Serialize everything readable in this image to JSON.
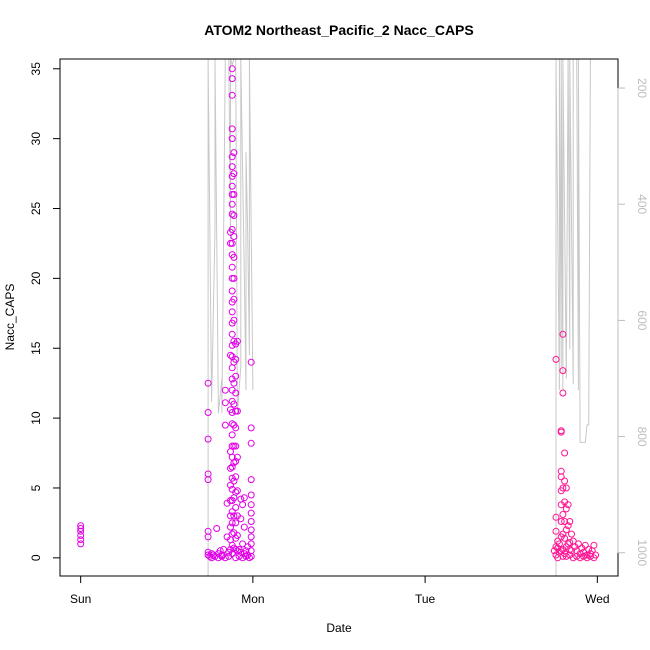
{
  "chart_data": {
    "type": "scatter",
    "title": "ATOM2 Northeast_Pacific_2 Nacc_CAPS",
    "xlabel": "Date",
    "ylabel": "Nacc_CAPS",
    "x_ticks": [
      "Sun",
      "Mon",
      "Tue",
      "Wed"
    ],
    "x_tick_days": [
      0,
      1,
      2,
      3
    ],
    "xlim_days": [
      -0.12,
      3.12
    ],
    "ylim": [
      -1.3,
      35.7
    ],
    "y_ticks": [
      0,
      5,
      10,
      15,
      20,
      25,
      30,
      35
    ],
    "y2_ticks": [
      200,
      400,
      600,
      800,
      1000
    ],
    "y2lim": [
      1040,
      150
    ],
    "grid": false,
    "legend": "none",
    "colors": {
      "flight1": "#e100e6",
      "flight2": "#ff1493",
      "altitude": "#c8c8c8",
      "axis": "#000000",
      "y2_labels": "#bdbdbd"
    },
    "series": [
      {
        "color": "flight1",
        "points": [
          [
            0.0,
            1.0
          ],
          [
            0.0,
            1.3
          ],
          [
            0.0,
            1.6
          ],
          [
            0.0,
            1.9
          ],
          [
            0.0,
            2.1
          ],
          [
            0.0,
            2.3
          ],
          [
            0.74,
            12.5
          ],
          [
            0.74,
            10.4
          ],
          [
            0.74,
            8.5
          ],
          [
            0.74,
            6.0
          ],
          [
            0.74,
            5.6
          ],
          [
            0.74,
            1.9
          ],
          [
            0.74,
            1.5
          ],
          [
            0.74,
            0.4
          ],
          [
            0.74,
            0.2
          ],
          [
            0.75,
            0.1
          ],
          [
            0.76,
            0.3
          ],
          [
            0.77,
            0.2
          ],
          [
            0.79,
            2.1
          ],
          [
            0.8,
            0.3
          ],
          [
            0.81,
            0.5
          ],
          [
            0.82,
            0.2
          ],
          [
            0.83,
            0.6
          ],
          [
            0.84,
            11.1
          ],
          [
            0.84,
            12.0
          ],
          [
            0.84,
            9.5
          ],
          [
            0.85,
            1.5
          ],
          [
            0.85,
            3.9
          ],
          [
            0.86,
            0.4
          ],
          [
            0.87,
            23.3
          ],
          [
            0.87,
            22.5
          ],
          [
            0.87,
            14.5
          ],
          [
            0.87,
            10.6
          ],
          [
            0.87,
            7.6
          ],
          [
            0.87,
            6.4
          ],
          [
            0.87,
            5.2
          ],
          [
            0.87,
            4.1
          ],
          [
            0.87,
            3.0
          ],
          [
            0.87,
            2.2
          ],
          [
            0.87,
            1.3
          ],
          [
            0.87,
            0.6
          ],
          [
            0.88,
            35.0
          ],
          [
            0.88,
            34.3
          ],
          [
            0.88,
            33.1
          ],
          [
            0.88,
            30.7
          ],
          [
            0.88,
            30.0
          ],
          [
            0.88,
            28.7
          ],
          [
            0.88,
            28.0
          ],
          [
            0.88,
            27.3
          ],
          [
            0.88,
            26.6
          ],
          [
            0.88,
            26.0
          ],
          [
            0.88,
            25.3
          ],
          [
            0.88,
            24.6
          ],
          [
            0.88,
            23.5
          ],
          [
            0.88,
            22.5
          ],
          [
            0.88,
            21.7
          ],
          [
            0.88,
            20.8
          ],
          [
            0.88,
            20.0
          ],
          [
            0.88,
            19.1
          ],
          [
            0.88,
            18.3
          ],
          [
            0.88,
            17.6
          ],
          [
            0.88,
            16.8
          ],
          [
            0.88,
            16.0
          ],
          [
            0.88,
            15.2
          ],
          [
            0.88,
            14.4
          ],
          [
            0.88,
            13.6
          ],
          [
            0.88,
            12.8
          ],
          [
            0.88,
            12.0
          ],
          [
            0.88,
            11.2
          ],
          [
            0.88,
            10.4
          ],
          [
            0.88,
            9.6
          ],
          [
            0.88,
            8.8
          ],
          [
            0.88,
            8.0
          ],
          [
            0.88,
            7.2
          ],
          [
            0.88,
            6.5
          ],
          [
            0.88,
            5.7
          ],
          [
            0.88,
            4.9
          ],
          [
            0.88,
            4.1
          ],
          [
            0.88,
            3.3
          ],
          [
            0.88,
            2.5
          ],
          [
            0.88,
            1.7
          ],
          [
            0.88,
            0.9
          ],
          [
            0.88,
            0.3
          ],
          [
            0.89,
            29.0
          ],
          [
            0.89,
            27.5
          ],
          [
            0.89,
            26.0
          ],
          [
            0.89,
            24.5
          ],
          [
            0.89,
            23.0
          ],
          [
            0.89,
            21.5
          ],
          [
            0.89,
            20.0
          ],
          [
            0.89,
            18.5
          ],
          [
            0.89,
            17.0
          ],
          [
            0.89,
            15.5
          ],
          [
            0.89,
            14.0
          ],
          [
            0.89,
            12.5
          ],
          [
            0.89,
            11.0
          ],
          [
            0.89,
            9.5
          ],
          [
            0.89,
            8.0
          ],
          [
            0.89,
            6.8
          ],
          [
            0.89,
            5.5
          ],
          [
            0.89,
            4.3
          ],
          [
            0.89,
            3.0
          ],
          [
            0.89,
            1.8
          ],
          [
            0.89,
            0.7
          ],
          [
            0.9,
            15.3
          ],
          [
            0.9,
            14.2
          ],
          [
            0.9,
            13.0
          ],
          [
            0.9,
            11.8
          ],
          [
            0.9,
            10.5
          ],
          [
            0.9,
            9.3
          ],
          [
            0.9,
            8.0
          ],
          [
            0.9,
            6.9
          ],
          [
            0.9,
            5.8
          ],
          [
            0.9,
            4.7
          ],
          [
            0.9,
            3.6
          ],
          [
            0.9,
            2.5
          ],
          [
            0.9,
            1.4
          ],
          [
            0.9,
            0.6
          ],
          [
            0.91,
            15.5
          ],
          [
            0.91,
            10.5
          ],
          [
            0.91,
            7.2
          ],
          [
            0.91,
            4.8
          ],
          [
            0.91,
            3.0
          ],
          [
            0.91,
            1.6
          ],
          [
            0.91,
            0.5
          ],
          [
            0.92,
            0.6
          ],
          [
            0.93,
            4.2
          ],
          [
            0.93,
            2.8
          ],
          [
            0.93,
            0.4
          ],
          [
            0.94,
            3.8
          ],
          [
            0.94,
            1.0
          ],
          [
            0.95,
            4.3
          ],
          [
            0.95,
            2.2
          ],
          [
            0.95,
            0.3
          ],
          [
            0.96,
            0.5
          ],
          [
            0.97,
            0.8
          ],
          [
            0.97,
            0.2
          ],
          [
            0.99,
            14.0
          ],
          [
            0.99,
            9.3
          ],
          [
            0.99,
            8.2
          ],
          [
            0.99,
            5.6
          ],
          [
            0.99,
            4.5
          ],
          [
            0.99,
            3.8
          ],
          [
            0.99,
            3.2
          ],
          [
            0.99,
            2.6
          ],
          [
            0.99,
            2.0
          ],
          [
            0.99,
            1.5
          ],
          [
            0.99,
            1.0
          ],
          [
            0.99,
            0.5
          ],
          [
            0.99,
            0.1
          ],
          [
            0.76,
            0.0
          ],
          [
            0.78,
            0.1
          ],
          [
            0.8,
            0.0
          ],
          [
            0.82,
            0.1
          ],
          [
            0.84,
            0.0
          ],
          [
            0.86,
            0.1
          ],
          [
            0.9,
            0.0
          ],
          [
            0.92,
            0.1
          ],
          [
            0.94,
            0.0
          ],
          [
            0.96,
            0.1
          ],
          [
            0.98,
            0.0
          ]
        ]
      },
      {
        "color": "flight2",
        "points": [
          [
            2.76,
            14.2
          ],
          [
            2.76,
            2.9
          ],
          [
            2.76,
            1.9
          ],
          [
            2.76,
            0.8
          ],
          [
            2.76,
            0.2
          ],
          [
            2.77,
            1.2
          ],
          [
            2.77,
            0.0
          ],
          [
            2.78,
            0.4
          ],
          [
            2.79,
            9.0
          ],
          [
            2.79,
            9.1
          ],
          [
            2.79,
            6.2
          ],
          [
            2.79,
            5.8
          ],
          [
            2.79,
            4.8
          ],
          [
            2.79,
            3.8
          ],
          [
            2.79,
            2.6
          ],
          [
            2.79,
            1.5
          ],
          [
            2.79,
            0.5
          ],
          [
            2.8,
            16.0
          ],
          [
            2.8,
            13.4
          ],
          [
            2.8,
            11.8
          ],
          [
            2.8,
            5.0
          ],
          [
            2.8,
            3.1
          ],
          [
            2.8,
            1.7
          ],
          [
            2.8,
            0.6
          ],
          [
            2.81,
            7.5
          ],
          [
            2.81,
            5.5
          ],
          [
            2.81,
            4.0
          ],
          [
            2.81,
            2.6
          ],
          [
            2.81,
            1.4
          ],
          [
            2.81,
            0.3
          ],
          [
            2.82,
            5.0
          ],
          [
            2.82,
            3.5
          ],
          [
            2.82,
            2.0
          ],
          [
            2.82,
            0.8
          ],
          [
            2.83,
            3.8
          ],
          [
            2.83,
            2.3
          ],
          [
            2.83,
            1.0
          ],
          [
            2.84,
            2.6
          ],
          [
            2.84,
            1.1
          ],
          [
            2.84,
            0.2
          ],
          [
            2.85,
            1.7
          ],
          [
            2.85,
            0.5
          ],
          [
            2.86,
            1.2
          ],
          [
            2.87,
            0.8
          ],
          [
            2.88,
            0.5
          ],
          [
            2.89,
            1.0
          ],
          [
            2.9,
            0.3
          ],
          [
            2.91,
            0.7
          ],
          [
            2.92,
            0.4
          ],
          [
            2.93,
            0.9
          ],
          [
            2.94,
            0.2
          ],
          [
            2.95,
            0.6
          ],
          [
            2.96,
            0.3
          ],
          [
            2.97,
            0.5
          ],
          [
            2.98,
            0.9
          ],
          [
            2.99,
            0.2
          ],
          [
            2.75,
            0.5
          ],
          [
            2.77,
            0.7
          ],
          [
            2.78,
            1.0
          ],
          [
            2.8,
            0.1
          ],
          [
            2.82,
            0.1
          ],
          [
            2.84,
            0.6
          ],
          [
            2.86,
            0.0
          ],
          [
            2.88,
            0.1
          ],
          [
            2.9,
            0.0
          ],
          [
            2.92,
            0.1
          ],
          [
            2.94,
            0.0
          ],
          [
            2.96,
            0.1
          ],
          [
            2.98,
            0.0
          ]
        ]
      }
    ],
    "altitude_series": [
      {
        "color": "altitude",
        "points": [
          [
            0.74,
            1040
          ],
          [
            0.74,
            150
          ],
          [
            0.76,
            740
          ],
          [
            0.76,
            740
          ],
          [
            0.78,
            440
          ],
          [
            0.78,
            150
          ],
          [
            0.8,
            760
          ],
          [
            0.8,
            760
          ],
          [
            0.82,
            700
          ],
          [
            0.82,
            760
          ],
          [
            0.84,
            150
          ],
          [
            0.86,
            150
          ],
          [
            0.87,
            460
          ],
          [
            0.87,
            150
          ],
          [
            0.88,
            160
          ],
          [
            0.89,
            150
          ],
          [
            0.9,
            150
          ],
          [
            0.91,
            760
          ],
          [
            0.93,
            680
          ],
          [
            0.93,
            150
          ],
          [
            0.95,
            520
          ],
          [
            0.96,
            720
          ],
          [
            0.96,
            310
          ],
          [
            0.97,
            450
          ],
          [
            0.98,
            660
          ],
          [
            0.98,
            150
          ],
          [
            1.0,
            720
          ]
        ]
      },
      {
        "color": "altitude",
        "points": [
          [
            2.76,
            1040
          ],
          [
            2.76,
            150
          ],
          [
            2.78,
            720
          ],
          [
            2.78,
            150
          ],
          [
            2.79,
            680
          ],
          [
            2.79,
            150
          ],
          [
            2.8,
            720
          ],
          [
            2.8,
            150
          ],
          [
            2.82,
            700
          ],
          [
            2.83,
            150
          ],
          [
            2.84,
            650
          ],
          [
            2.84,
            150
          ],
          [
            2.86,
            710
          ],
          [
            2.86,
            150
          ],
          [
            2.88,
            150
          ],
          [
            2.89,
            720
          ],
          [
            2.89,
            150
          ],
          [
            2.9,
            810
          ],
          [
            2.93,
            810
          ],
          [
            2.94,
            780
          ],
          [
            2.95,
            780
          ],
          [
            2.96,
            150
          ],
          [
            2.97,
            150
          ]
        ]
      }
    ]
  }
}
